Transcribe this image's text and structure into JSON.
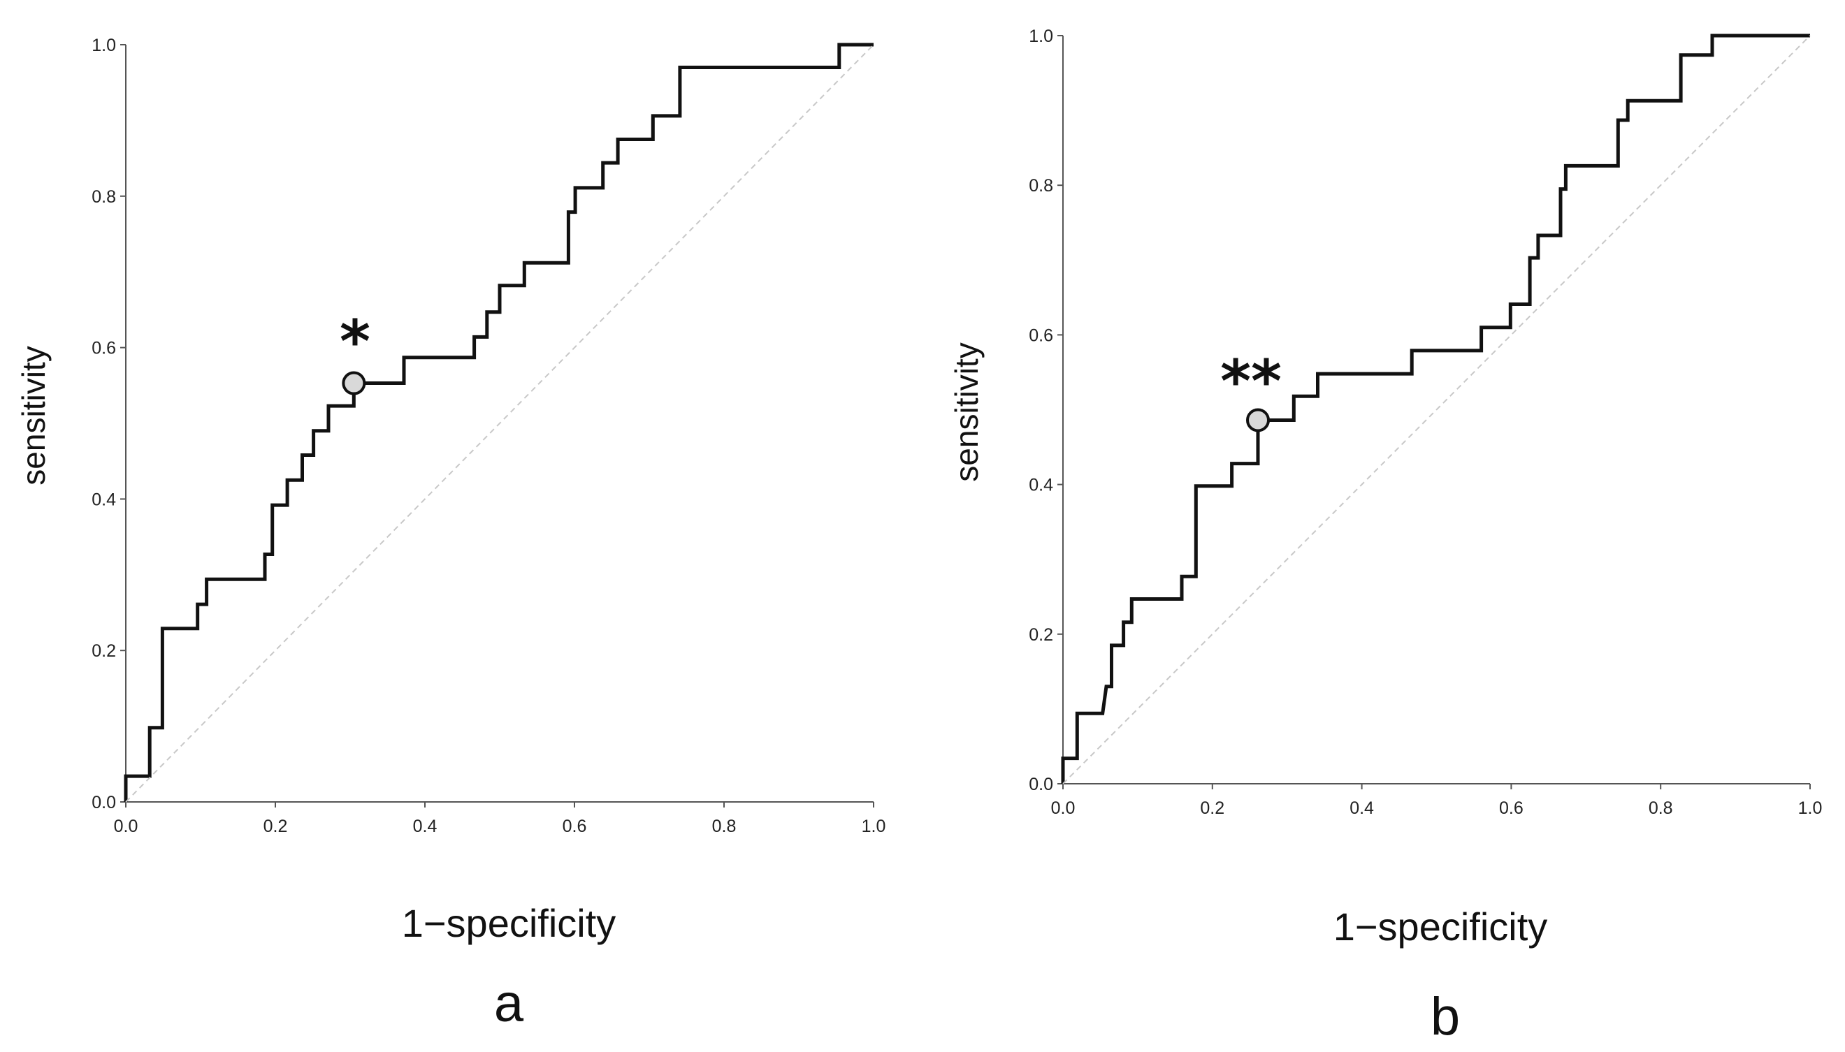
{
  "chart_data": [
    {
      "type": "line",
      "panel_label": "a",
      "xlabel": "1−specificity",
      "ylabel": "sensitivity",
      "xlim": [
        0.0,
        1.0
      ],
      "ylim": [
        0.0,
        1.0
      ],
      "x_ticks": [
        "0.0",
        "0.2",
        "0.4",
        "0.6",
        "0.8",
        "1.0"
      ],
      "y_ticks": [
        "0.0",
        "0.2",
        "0.4",
        "0.6",
        "0.8",
        "1.0"
      ],
      "grid": false,
      "marker_label": "*",
      "cutoff_point": {
        "x": 0.305,
        "y": 0.553
      },
      "series": [
        {
          "name": "ROC curve",
          "color": "#111111",
          "x": [
            0.0,
            0.0,
            0.032,
            0.032,
            0.049,
            0.049,
            0.096,
            0.096,
            0.108,
            0.108,
            0.186,
            0.186,
            0.196,
            0.196,
            0.216,
            0.216,
            0.236,
            0.236,
            0.251,
            0.251,
            0.271,
            0.271,
            0.305,
            0.305,
            0.372,
            0.372,
            0.466,
            0.466,
            0.483,
            0.483,
            0.5,
            0.5,
            0.533,
            0.533,
            0.592,
            0.592,
            0.601,
            0.601,
            0.638,
            0.638,
            0.658,
            0.658,
            0.705,
            0.705,
            0.741,
            0.741,
            0.845,
            0.845,
            0.954,
            0.954,
            1.0
          ],
          "y": [
            0.0,
            0.034,
            0.034,
            0.098,
            0.098,
            0.229,
            0.229,
            0.261,
            0.261,
            0.294,
            0.294,
            0.327,
            0.327,
            0.392,
            0.392,
            0.425,
            0.425,
            0.458,
            0.458,
            0.49,
            0.49,
            0.523,
            0.523,
            0.553,
            0.553,
            0.587,
            0.587,
            0.614,
            0.614,
            0.647,
            0.647,
            0.682,
            0.682,
            0.712,
            0.712,
            0.779,
            0.779,
            0.811,
            0.811,
            0.844,
            0.844,
            0.875,
            0.875,
            0.906,
            0.906,
            0.97,
            0.97,
            0.97,
            0.97,
            1.0,
            1.0
          ]
        },
        {
          "name": "reference line",
          "color": "#c8c8c8",
          "x": [
            0.0,
            1.0
          ],
          "y": [
            0.0,
            1.0
          ]
        }
      ]
    },
    {
      "type": "line",
      "panel_label": "b",
      "xlabel": "1−specificity",
      "ylabel": "sensitivity",
      "xlim": [
        0.0,
        1.0
      ],
      "ylim": [
        0.0,
        1.0
      ],
      "x_ticks": [
        "0.0",
        "0.2",
        "0.4",
        "0.6",
        "0.8",
        "1.0"
      ],
      "y_ticks": [
        "0.0",
        "0.2",
        "0.4",
        "0.6",
        "0.8",
        "1.0"
      ],
      "grid": false,
      "marker_label": "**",
      "cutoff_point": {
        "x": 0.261,
        "y": 0.486
      },
      "series": [
        {
          "name": "ROC curve",
          "color": "#111111",
          "x": [
            0.0,
            0.0,
            0.019,
            0.019,
            0.053,
            0.058,
            0.065,
            0.065,
            0.081,
            0.081,
            0.092,
            0.092,
            0.159,
            0.159,
            0.178,
            0.178,
            0.226,
            0.226,
            0.237,
            0.237,
            0.261,
            0.261,
            0.309,
            0.309,
            0.341,
            0.341,
            0.467,
            0.467,
            0.56,
            0.56,
            0.599,
            0.599,
            0.625,
            0.625,
            0.636,
            0.636,
            0.666,
            0.666,
            0.673,
            0.673,
            0.743,
            0.743,
            0.756,
            0.756,
            0.827,
            0.827,
            0.869,
            0.869,
            1.0
          ],
          "y": [
            0.0,
            0.034,
            0.034,
            0.094,
            0.094,
            0.13,
            0.13,
            0.185,
            0.185,
            0.216,
            0.216,
            0.247,
            0.247,
            0.277,
            0.277,
            0.398,
            0.398,
            0.428,
            0.428,
            0.428,
            0.428,
            0.486,
            0.486,
            0.518,
            0.518,
            0.548,
            0.548,
            0.579,
            0.579,
            0.61,
            0.61,
            0.641,
            0.641,
            0.703,
            0.703,
            0.733,
            0.733,
            0.795,
            0.795,
            0.826,
            0.826,
            0.887,
            0.887,
            0.913,
            0.913,
            0.974,
            0.974,
            1.0,
            1.0
          ]
        },
        {
          "name": "reference line",
          "color": "#c8c8c8",
          "x": [
            0.0,
            1.0
          ],
          "y": [
            0.0,
            1.0
          ]
        }
      ]
    }
  ]
}
